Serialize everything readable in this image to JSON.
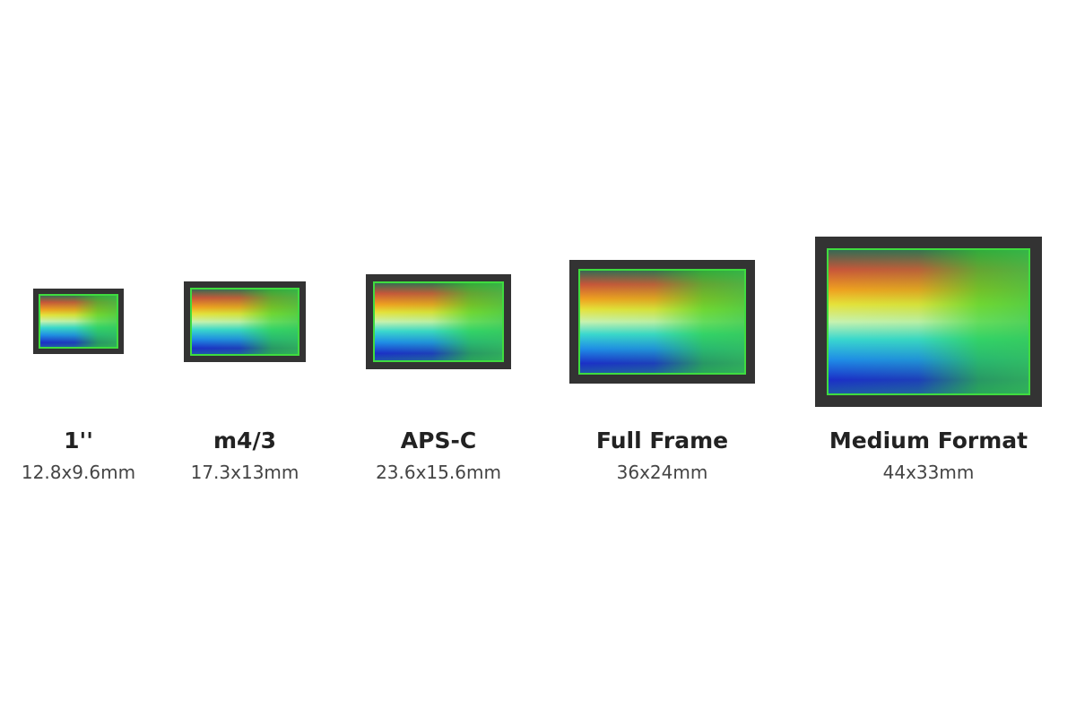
{
  "sensors": [
    {
      "name": "1''",
      "size": "12.8x9.6mm"
    },
    {
      "name": "m4/3",
      "size": "17.3x13mm"
    },
    {
      "name": "APS-C",
      "size": "23.6x15.6mm"
    },
    {
      "name": "Full Frame",
      "size": "36x24mm"
    },
    {
      "name": "Medium Format",
      "size": "44x33mm"
    }
  ]
}
